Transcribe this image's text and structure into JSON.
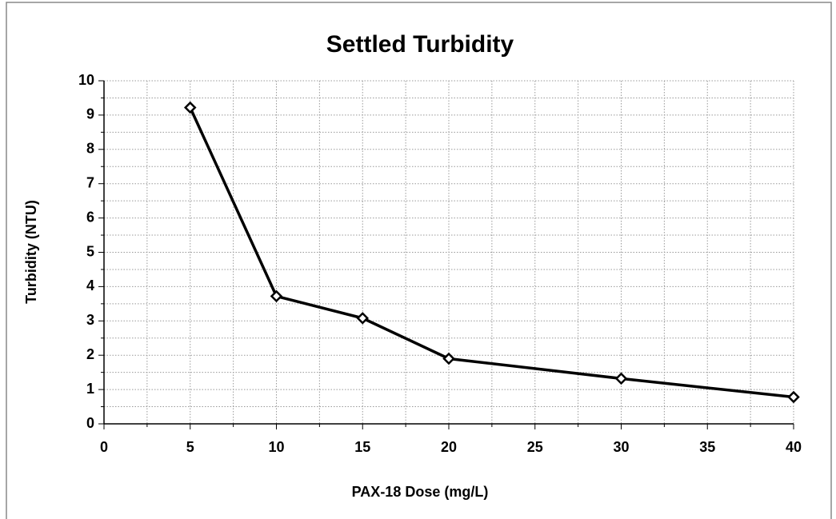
{
  "chart_data": {
    "type": "line",
    "title": "Settled Turbidity",
    "x_label": "PAX-18 Dose (mg/L)",
    "y_label": "Turbidity (NTU)",
    "x": [
      5,
      10,
      15,
      20,
      30,
      40
    ],
    "series": [
      {
        "name": "Settled Turbidity",
        "color": "#000000",
        "values": [
          9.22,
          3.72,
          3.08,
          1.9,
          1.32,
          0.78
        ]
      }
    ],
    "xlim": [
      0,
      40
    ],
    "xticks": [
      0,
      5,
      10,
      15,
      20,
      25,
      30,
      35,
      40
    ],
    "xminorticks": [
      2.5,
      7.5,
      12.5,
      17.5,
      22.5,
      27.5,
      32.5,
      37.5
    ],
    "ylim": [
      0,
      10
    ],
    "yticks": [
      0,
      1,
      2,
      3,
      4,
      5,
      6,
      7,
      8,
      9,
      10
    ],
    "yminorticks": [
      0.5,
      1.5,
      2.5,
      3.5,
      4.5,
      5.5,
      6.5,
      7.5,
      8.5,
      9.5
    ],
    "grid": true,
    "marker": "diamond"
  }
}
